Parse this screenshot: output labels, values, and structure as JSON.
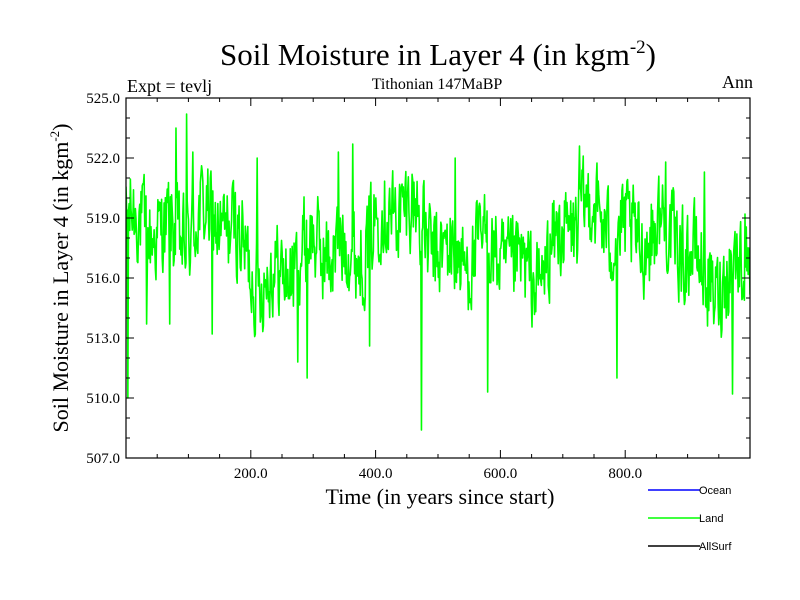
{
  "chart_data": {
    "type": "line",
    "title": "Soil Moisture in Layer 4 (in kgm",
    "title_sup": "-2",
    "title_end": ")",
    "subtitle_left": "Expt = tevlj",
    "subtitle_center": "Tithonian 147MaBP",
    "subtitle_right": "Ann",
    "xlabel": "Time (in years since start)",
    "ylabel": "Soil Moisture in Layer 4 (in kgm",
    "ylabel_sup": "-2",
    "ylabel_end": ")",
    "xlim": [
      0,
      1000
    ],
    "ylim": [
      507.0,
      525.0
    ],
    "xticks": [
      200,
      400,
      600,
      800
    ],
    "xtick_labels": [
      "200.0",
      "400.0",
      "600.0",
      "800.0"
    ],
    "yticks": [
      507.0,
      510.0,
      513.0,
      516.0,
      519.0,
      522.0,
      525.0
    ],
    "ytick_labels": [
      "507.0",
      "510.0",
      "513.0",
      "516.0",
      "519.0",
      "522.0",
      "525.0"
    ],
    "legend": [
      {
        "name": "Ocean",
        "color": "#0000ff"
      },
      {
        "name": "Land",
        "color": "#00ff00"
      },
      {
        "name": "AllSurf",
        "color": "#000000"
      }
    ],
    "series": [
      {
        "name": "Land",
        "color": "#00ff00",
        "mean": 517.7,
        "x_start": 0,
        "x_end": 1000,
        "n_points": 1000,
        "anchors": [
          {
            "x": 3,
            "y": 510.0
          },
          {
            "x": 33,
            "y": 513.7
          },
          {
            "x": 70,
            "y": 513.7
          },
          {
            "x": 80,
            "y": 523.5
          },
          {
            "x": 97,
            "y": 524.2
          },
          {
            "x": 107,
            "y": 522.3
          },
          {
            "x": 138,
            "y": 513.2
          },
          {
            "x": 210,
            "y": 522.0
          },
          {
            "x": 275,
            "y": 511.8
          },
          {
            "x": 290,
            "y": 511.0
          },
          {
            "x": 340,
            "y": 522.3
          },
          {
            "x": 363,
            "y": 522.7
          },
          {
            "x": 390,
            "y": 512.6
          },
          {
            "x": 473,
            "y": 508.4
          },
          {
            "x": 528,
            "y": 522.0
          },
          {
            "x": 580,
            "y": 510.3
          },
          {
            "x": 727,
            "y": 522.6
          },
          {
            "x": 787,
            "y": 511.0
          },
          {
            "x": 865,
            "y": 521.8
          },
          {
            "x": 927,
            "y": 521.3
          },
          {
            "x": 972,
            "y": 510.2
          },
          {
            "x": 992,
            "y": 519.2
          }
        ]
      }
    ]
  }
}
